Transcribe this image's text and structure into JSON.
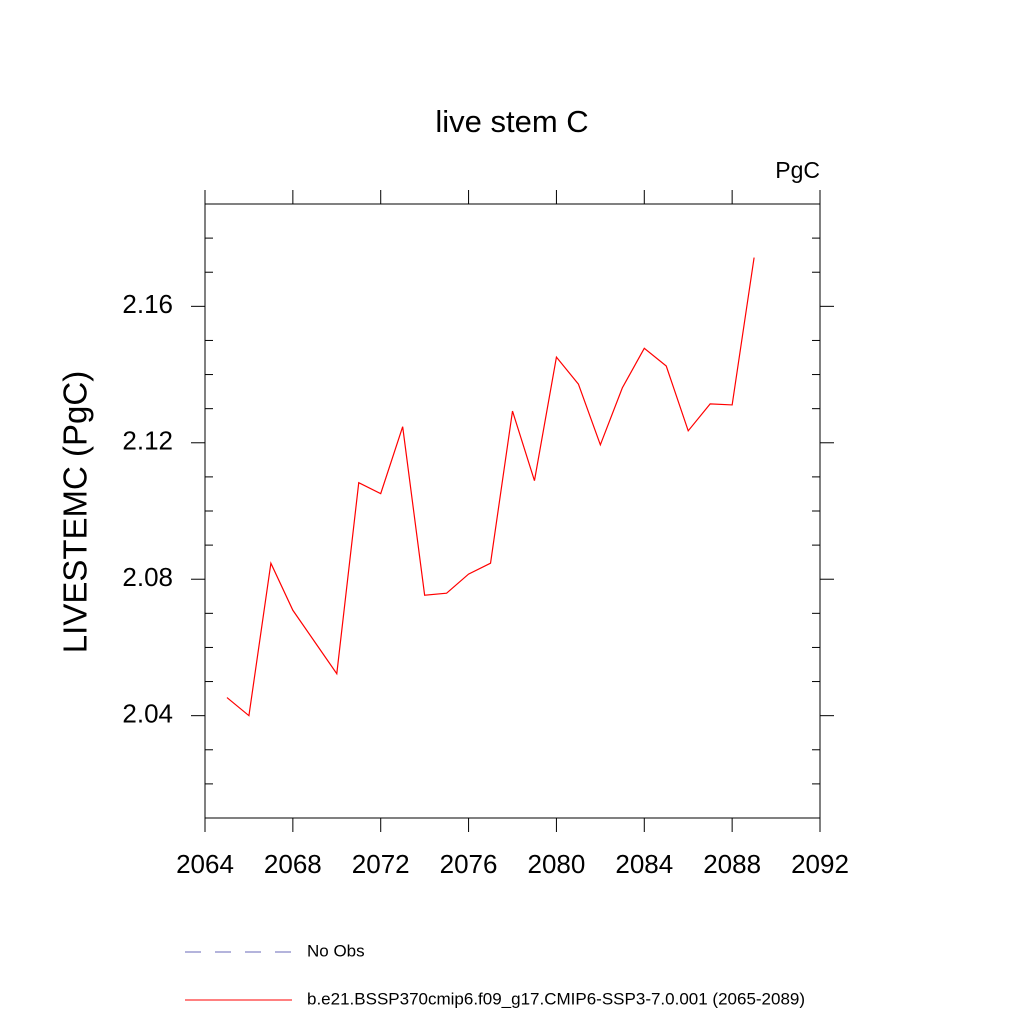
{
  "chart_data": {
    "type": "line",
    "title": "live stem C",
    "units": "PgC",
    "y_label": "LIVESTEMC  (PgC)",
    "x": [
      2065,
      2066,
      2067,
      2068,
      2069,
      2070,
      2071,
      2072,
      2073,
      2074,
      2075,
      2076,
      2077,
      2078,
      2079,
      2080,
      2081,
      2082,
      2083,
      2084,
      2085,
      2086,
      2087,
      2088,
      2089
    ],
    "series": [
      {
        "name": "b.e21.BSSP370cmip6.f09_g17.CMIP6-SSP3-7.0.001 (2065-2089)",
        "color": "#ff0000",
        "values": [
          2.0453,
          2.04,
          2.0847,
          2.0709,
          2.0616,
          2.0523,
          2.1083,
          2.1051,
          2.1247,
          2.0753,
          2.0759,
          2.0815,
          2.0847,
          2.1293,
          2.1089,
          2.1451,
          2.1372,
          2.1194,
          2.1361,
          2.1477,
          2.1425,
          2.1235,
          2.1314,
          2.1311,
          2.1743
        ]
      }
    ],
    "legend": [
      {
        "label": "No Obs",
        "color": "#6a6ab8",
        "style": "dashed"
      }
    ],
    "xlim": [
      2064,
      2092
    ],
    "xticks": [
      2064,
      2068,
      2072,
      2076,
      2080,
      2084,
      2088,
      2092
    ],
    "ylim": [
      2.01,
      2.19
    ],
    "yticks": [
      2.04,
      2.08,
      2.12,
      2.16
    ],
    "yminor": [
      2.01,
      2.02,
      2.03,
      2.05,
      2.06,
      2.07,
      2.09,
      2.1,
      2.11,
      2.13,
      2.14,
      2.15,
      2.17,
      2.18,
      2.19
    ]
  }
}
